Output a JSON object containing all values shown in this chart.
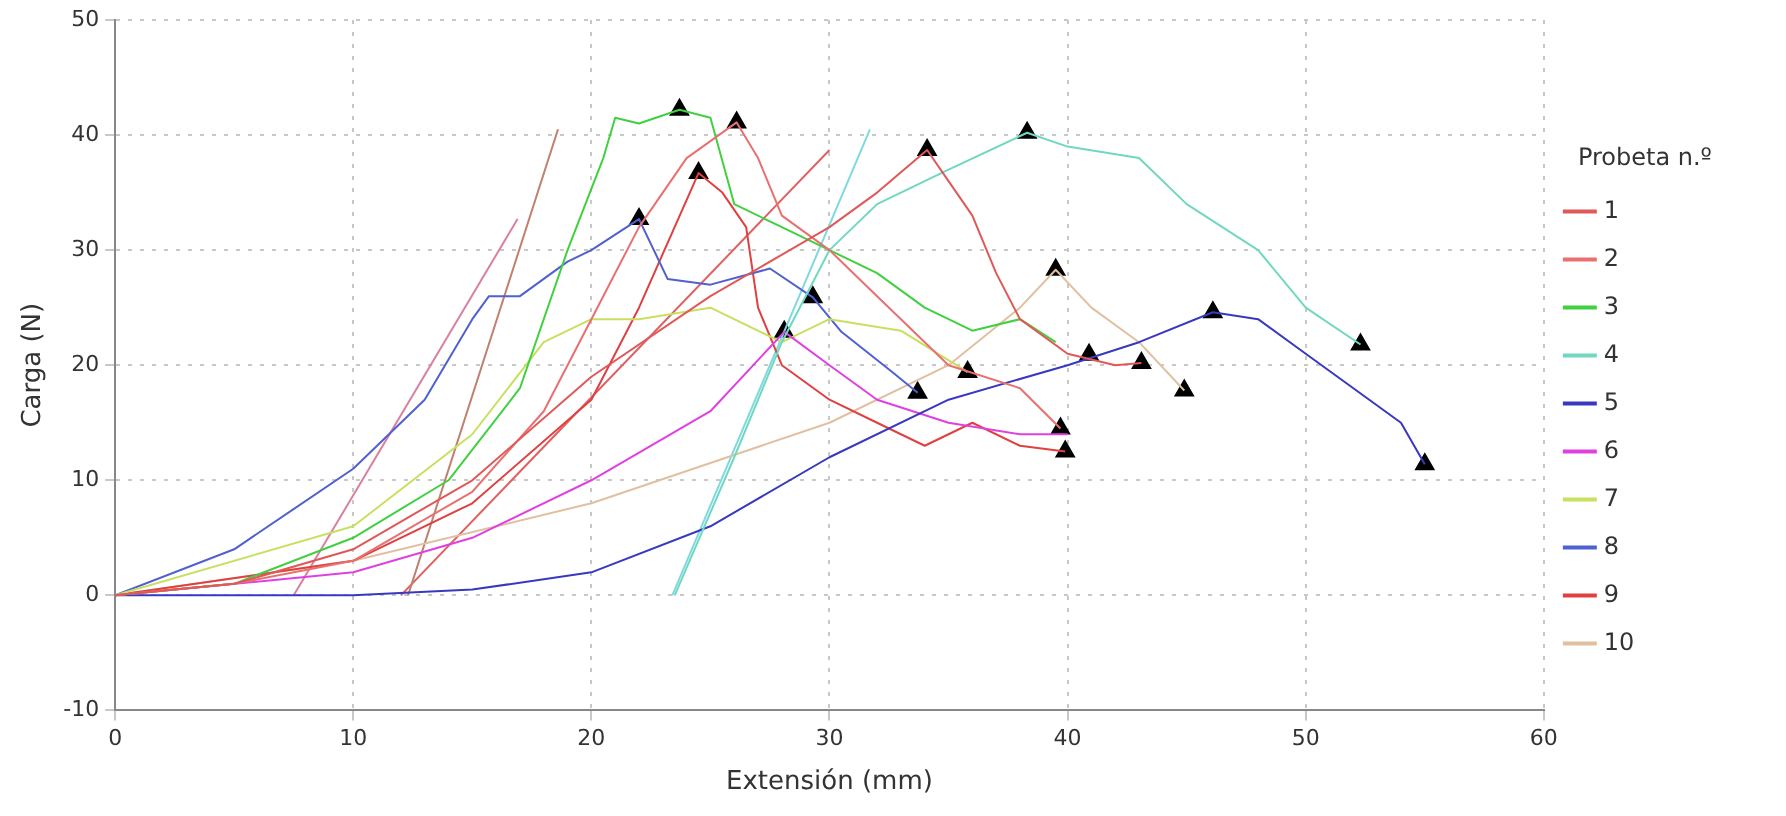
{
  "chart_data": {
    "type": "line",
    "xlabel": "Extensión (mm)",
    "ylabel": "Carga (N)",
    "legend_title": "Probeta n.º",
    "legend": "right",
    "grid": true,
    "marker": "none",
    "line_style": "solid",
    "xlim": [
      0,
      60
    ],
    "xticks": [
      0,
      10,
      20,
      30,
      40,
      50,
      60
    ],
    "ylim": [
      -10,
      50
    ],
    "yticks": [
      -10,
      0,
      10,
      20,
      30,
      40,
      50
    ],
    "series": [
      {
        "name": "1",
        "color": "#e05858",
        "x": [
          0,
          5,
          10,
          15,
          20,
          25,
          30,
          32,
          34.1,
          35,
          36,
          37,
          38,
          40,
          42,
          43.1
        ],
        "values": [
          0,
          1,
          4,
          10,
          19,
          26,
          32,
          35,
          38.7,
          36,
          33,
          28,
          24,
          21,
          20,
          20.2
        ]
      },
      {
        "name": "2",
        "color": "#e87070",
        "x": [
          0,
          5,
          10,
          15,
          18,
          20,
          22,
          24,
          26.1,
          27,
          28,
          30,
          32,
          35,
          38,
          39.7
        ],
        "values": [
          0,
          1,
          3,
          9,
          16,
          24,
          32,
          38,
          41.1,
          38,
          33,
          30,
          26,
          20,
          18,
          14.5
        ]
      },
      {
        "name": "3",
        "color": "#40d040",
        "x": [
          0,
          5,
          10,
          14,
          17,
          19,
          20.5,
          21,
          22,
          23.7,
          25,
          26,
          28,
          30,
          32,
          34,
          36,
          38,
          39.5
        ],
        "values": [
          0,
          1,
          5,
          10,
          18,
          30,
          38,
          41.5,
          41,
          42.2,
          41.5,
          34,
          32,
          30,
          28,
          25,
          23,
          24,
          22
        ]
      },
      {
        "name": "4",
        "color": "#70d8c0",
        "x": [
          23.5,
          26,
          28,
          30,
          32,
          35,
          38.3,
          40,
          43,
          45,
          48,
          50,
          52.3
        ],
        "values": [
          0,
          12,
          22,
          30,
          34,
          37,
          40.2,
          39,
          38,
          34,
          30,
          25,
          21.8
        ]
      },
      {
        "name": "5",
        "color": "#3838c0",
        "x": [
          0,
          10,
          15,
          20,
          25,
          30,
          35,
          40,
          43,
          46.1,
          48,
          50,
          52,
          54,
          55
        ],
        "values": [
          0,
          0,
          0.5,
          2,
          6,
          12,
          17,
          20,
          22,
          24.6,
          24,
          21,
          18,
          15,
          11.4
        ]
      },
      {
        "name": "6",
        "color": "#e040e0",
        "x": [
          0,
          10,
          15,
          20,
          25,
          28.1,
          30,
          32,
          35,
          38,
          40
        ],
        "values": [
          0,
          2,
          5,
          10,
          16,
          22.9,
          20,
          17,
          15,
          14,
          14
        ]
      },
      {
        "name": "7",
        "color": "#c8e060",
        "x": [
          0,
          10,
          15,
          18,
          20,
          22,
          25,
          28,
          30,
          33,
          35.8
        ],
        "values": [
          0,
          6,
          14,
          22,
          24,
          24,
          25,
          22,
          24,
          23,
          19.4
        ]
      },
      {
        "name": "8",
        "color": "#5060d0",
        "x": [
          0,
          5,
          10,
          13,
          15,
          15.7,
          17,
          19,
          20,
          22,
          23.2,
          25,
          27.5,
          29.3,
          30.5,
          32.7,
          33.7
        ],
        "values": [
          0,
          4,
          11,
          17,
          24,
          26,
          26,
          29,
          30,
          32.7,
          27.5,
          27,
          28.4,
          25.9,
          22.9,
          19.3,
          17.6
        ]
      },
      {
        "name": "9",
        "color": "#e04040",
        "x": [
          0,
          10,
          15,
          20,
          22,
          24.5,
          25.5,
          26.5,
          27,
          28,
          30,
          32,
          34,
          36,
          38,
          39.9
        ],
        "values": [
          0,
          3,
          8,
          17,
          25,
          36.7,
          35,
          32,
          25,
          20,
          17,
          15,
          13,
          15,
          13,
          12.5
        ]
      },
      {
        "name": "10",
        "color": "#e0c0a0",
        "x": [
          0,
          10,
          20,
          30,
          35,
          38,
          39.5,
          41,
          43,
          44.9
        ],
        "values": [
          0,
          3,
          8,
          15,
          20,
          25,
          28.3,
          25,
          22,
          17.8
        ]
      },
      {
        "type": "line",
        "color": "#c08070",
        "x": [
          12.3,
          18.6
        ],
        "values": [
          0,
          40.5
        ]
      },
      {
        "type": "line",
        "color": "#d880a0",
        "x": [
          7.5,
          16.9
        ],
        "values": [
          0,
          32.7
        ]
      },
      {
        "type": "line",
        "color": "#80d8e0",
        "x": [
          23.4,
          31.7
        ],
        "values": [
          0,
          40.5
        ]
      },
      {
        "type": "line",
        "color": "#e06060",
        "x": [
          12,
          30
        ],
        "values": [
          0,
          38.7
        ]
      },
      {
        "type": "scatter",
        "color": "#000000",
        "marker": "triangle",
        "x": [
          23.7,
          26.1,
          24.5,
          22,
          34.1,
          38.3,
          29.3,
          28.1,
          35.8,
          33.7,
          39.5,
          46.1,
          52.3,
          40.9,
          43.1,
          44.9,
          39.7,
          39.9,
          55
        ],
        "values": [
          42.2,
          41.1,
          36.7,
          32.7,
          38.7,
          40.2,
          25.9,
          22.9,
          19.4,
          17.6,
          28.3,
          24.6,
          21.8,
          20.9,
          20.2,
          17.8,
          14.5,
          12.5,
          11.4
        ]
      }
    ]
  }
}
